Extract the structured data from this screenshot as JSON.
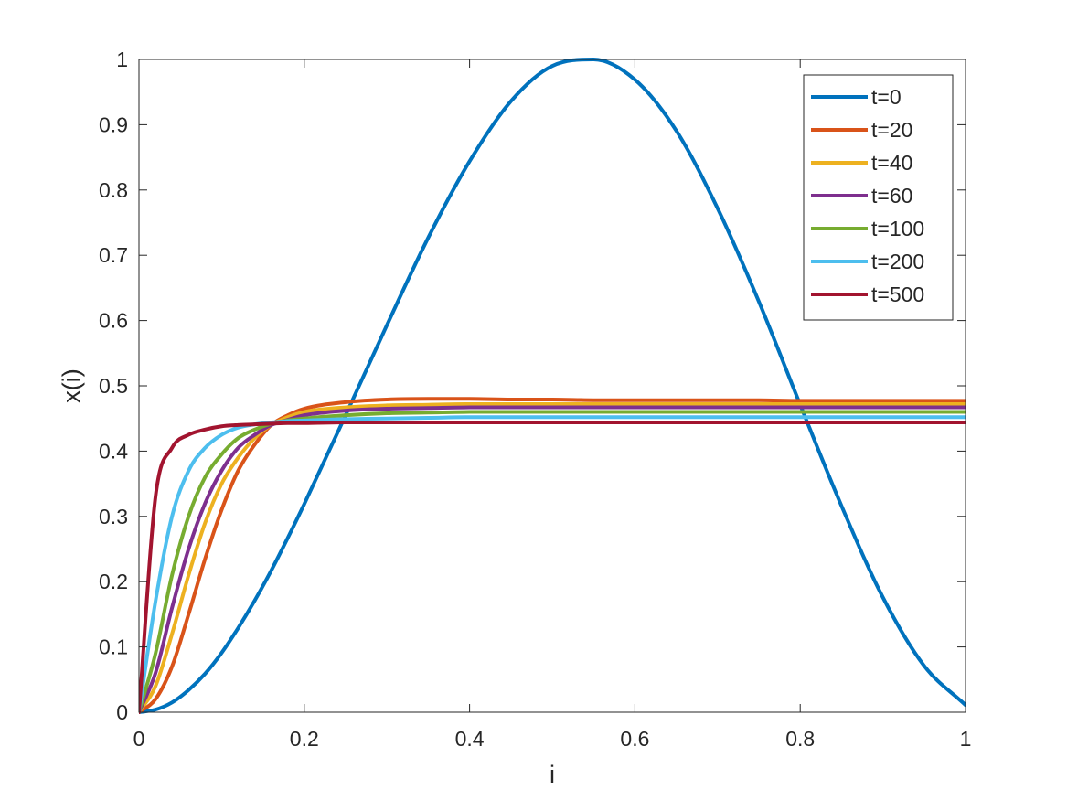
{
  "chart_data": {
    "type": "line",
    "title": "",
    "xlabel": "i",
    "ylabel": "x(i)",
    "xlim": [
      0,
      1
    ],
    "ylim": [
      0,
      1
    ],
    "grid": false,
    "legend_placement": "top-right",
    "x_ticks": [
      "0",
      "0.2",
      "0.4",
      "0.6",
      "0.8",
      "1"
    ],
    "y_ticks": [
      "0",
      "0.1",
      "0.2",
      "0.3",
      "0.4",
      "0.5",
      "0.6",
      "0.7",
      "0.8",
      "0.9",
      "1"
    ],
    "x": [
      0,
      0.02,
      0.04,
      0.06,
      0.08,
      0.1,
      0.12,
      0.14,
      0.16,
      0.18,
      0.2,
      0.25,
      0.3,
      0.35,
      0.4,
      0.45,
      0.5,
      0.55,
      0.6,
      0.65,
      0.7,
      0.75,
      0.8,
      0.85,
      0.9,
      0.95,
      1.0
    ],
    "series": [
      {
        "name": "t=0",
        "color": "#0072BD",
        "values": [
          0,
          0.004,
          0.015,
          0.034,
          0.059,
          0.091,
          0.129,
          0.171,
          0.217,
          0.267,
          0.319,
          0.455,
          0.593,
          0.727,
          0.844,
          0.936,
          0.99,
          1.0,
          0.969,
          0.891,
          0.772,
          0.629,
          0.471,
          0.316,
          0.176,
          0.071,
          0.011
        ]
      },
      {
        "name": "t=20",
        "color": "#D95319",
        "values": [
          0,
          0.02,
          0.07,
          0.15,
          0.235,
          0.31,
          0.37,
          0.41,
          0.44,
          0.455,
          0.465,
          0.475,
          0.479,
          0.48,
          0.48,
          0.479,
          0.479,
          0.478,
          0.478,
          0.478,
          0.478,
          0.478,
          0.477,
          0.477,
          0.477,
          0.477,
          0.477
        ]
      },
      {
        "name": "t=40",
        "color": "#EDB120",
        "values": [
          0,
          0.04,
          0.12,
          0.21,
          0.29,
          0.35,
          0.39,
          0.42,
          0.44,
          0.452,
          0.46,
          0.467,
          0.47,
          0.471,
          0.472,
          0.472,
          0.472,
          0.472,
          0.472,
          0.472,
          0.472,
          0.472,
          0.472,
          0.472,
          0.472,
          0.472,
          0.472
        ]
      },
      {
        "name": "t=60",
        "color": "#7E2F8E",
        "values": [
          0,
          0.06,
          0.16,
          0.25,
          0.32,
          0.37,
          0.405,
          0.425,
          0.44,
          0.448,
          0.455,
          0.462,
          0.465,
          0.466,
          0.467,
          0.467,
          0.467,
          0.467,
          0.467,
          0.467,
          0.467,
          0.467,
          0.467,
          0.467,
          0.467,
          0.467,
          0.467
        ]
      },
      {
        "name": "t=100",
        "color": "#77AC30",
        "values": [
          0,
          0.09,
          0.21,
          0.3,
          0.36,
          0.395,
          0.42,
          0.433,
          0.442,
          0.447,
          0.45,
          0.455,
          0.458,
          0.459,
          0.46,
          0.46,
          0.46,
          0.46,
          0.46,
          0.46,
          0.46,
          0.46,
          0.46,
          0.46,
          0.46,
          0.46,
          0.46
        ]
      },
      {
        "name": "t=200",
        "color": "#4DBEEE",
        "values": [
          0,
          0.17,
          0.3,
          0.37,
          0.405,
          0.425,
          0.436,
          0.441,
          0.444,
          0.446,
          0.447,
          0.449,
          0.45,
          0.451,
          0.452,
          0.452,
          0.452,
          0.452,
          0.452,
          0.452,
          0.452,
          0.452,
          0.452,
          0.452,
          0.452,
          0.452,
          0.452
        ]
      },
      {
        "name": "t=500",
        "color": "#A2142F",
        "values": [
          0,
          0.33,
          0.405,
          0.425,
          0.433,
          0.438,
          0.44,
          0.441,
          0.442,
          0.443,
          0.443,
          0.444,
          0.444,
          0.444,
          0.444,
          0.444,
          0.444,
          0.444,
          0.444,
          0.444,
          0.444,
          0.444,
          0.444,
          0.444,
          0.444,
          0.444,
          0.444
        ]
      }
    ]
  }
}
